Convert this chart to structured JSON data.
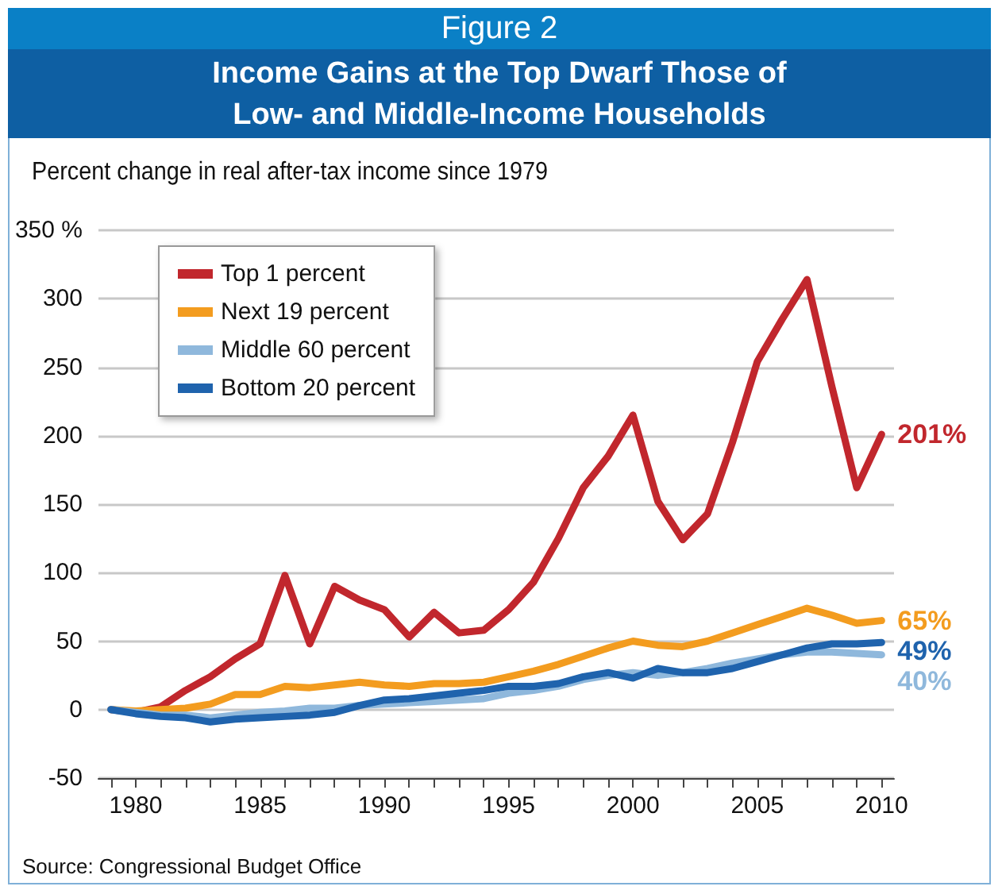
{
  "chart_data": {
    "type": "line",
    "title": "Income Gains at the Top Dwarf Those of Low- and Middle-Income Households",
    "ylabel": "Percent change in real after-tax income since 1979",
    "annotations": [
      "Figure 2",
      "Source: Congressional Budget Office"
    ],
    "x": [
      1979,
      1980,
      1981,
      1982,
      1983,
      1984,
      1985,
      1986,
      1987,
      1988,
      1989,
      1990,
      1991,
      1992,
      1993,
      1994,
      1995,
      1996,
      1997,
      1998,
      1999,
      2000,
      2001,
      2002,
      2003,
      2004,
      2005,
      2006,
      2007,
      2008,
      2009,
      2010
    ],
    "series": [
      {
        "name": "Top 1 percent",
        "color": "#c1272d",
        "values": [
          0,
          -2,
          2,
          14,
          24,
          37,
          48,
          98,
          48,
          90,
          80,
          73,
          53,
          71,
          56,
          58,
          73,
          93,
          125,
          162,
          185,
          215,
          152,
          124,
          143,
          195,
          254,
          285,
          314,
          236,
          162,
          201
        ],
        "value_labels": [
          null,
          null,
          null,
          null,
          null,
          null,
          null,
          null,
          null,
          null,
          null,
          null,
          null,
          null,
          null,
          null,
          null,
          null,
          null,
          null,
          null,
          null,
          null,
          null,
          null,
          null,
          null,
          null,
          null,
          null,
          null,
          "201%"
        ]
      },
      {
        "name": "Next 19 percent",
        "color": "#f39c1f",
        "values": [
          0,
          -1,
          0,
          1,
          4,
          11,
          11,
          17,
          16,
          18,
          20,
          18,
          17,
          19,
          19,
          20,
          24,
          28,
          33,
          39,
          45,
          50,
          47,
          46,
          50,
          56,
          62,
          68,
          74,
          69,
          63,
          65
        ],
        "value_labels": [
          null,
          null,
          null,
          null,
          null,
          null,
          null,
          null,
          null,
          null,
          null,
          null,
          null,
          null,
          null,
          null,
          null,
          null,
          null,
          null,
          null,
          null,
          null,
          null,
          null,
          null,
          null,
          null,
          null,
          null,
          null,
          "65%"
        ]
      },
      {
        "name": "Middle 60 percent",
        "color": "#8fb8dc",
        "values": [
          0,
          -2,
          -4,
          -4,
          -6,
          -4,
          -2,
          -1,
          1,
          1,
          3,
          4,
          5,
          6,
          7,
          8,
          12,
          14,
          17,
          22,
          25,
          27,
          25,
          27,
          30,
          34,
          37,
          40,
          42,
          42,
          41,
          40
        ],
        "value_labels": [
          null,
          null,
          null,
          null,
          null,
          null,
          null,
          null,
          null,
          null,
          null,
          null,
          null,
          null,
          null,
          null,
          null,
          null,
          null,
          null,
          null,
          null,
          null,
          null,
          null,
          null,
          null,
          null,
          null,
          null,
          null,
          "40%"
        ]
      },
      {
        "name": "Bottom 20 percent",
        "color": "#1f63ad",
        "values": [
          0,
          -3,
          -5,
          -6,
          -9,
          -7,
          -6,
          -5,
          -4,
          -2,
          3,
          7,
          8,
          10,
          12,
          14,
          17,
          17,
          19,
          24,
          27,
          23,
          30,
          27,
          27,
          30,
          35,
          40,
          45,
          48,
          48,
          49
        ],
        "value_labels": [
          null,
          null,
          null,
          null,
          null,
          null,
          null,
          null,
          null,
          null,
          null,
          null,
          null,
          null,
          null,
          null,
          null,
          null,
          null,
          null,
          null,
          null,
          null,
          null,
          null,
          null,
          null,
          null,
          null,
          null,
          null,
          "49%"
        ]
      }
    ],
    "xlim": [
      1978.5,
      2010.5
    ],
    "xticks": [
      {
        "value": 1979,
        "label": null
      },
      1980,
      {
        "value": 1981,
        "label": null
      },
      {
        "value": 1982,
        "label": null
      },
      {
        "value": 1983,
        "label": null
      },
      {
        "value": 1984,
        "label": null
      },
      1985,
      {
        "value": 1986,
        "label": null
      },
      {
        "value": 1987,
        "label": null
      },
      {
        "value": 1988,
        "label": null
      },
      {
        "value": 1989,
        "label": null
      },
      1990,
      {
        "value": 1991,
        "label": null
      },
      {
        "value": 1992,
        "label": null
      },
      {
        "value": 1993,
        "label": null
      },
      {
        "value": 1994,
        "label": null
      },
      1995,
      {
        "value": 1996,
        "label": null
      },
      {
        "value": 1997,
        "label": null
      },
      {
        "value": 1998,
        "label": null
      },
      {
        "value": 1999,
        "label": null
      },
      2000,
      {
        "value": 2001,
        "label": null
      },
      {
        "value": 2002,
        "label": null
      },
      {
        "value": 2003,
        "label": null
      },
      {
        "value": 2004,
        "label": null
      },
      2005,
      {
        "value": 2006,
        "label": null
      },
      {
        "value": 2007,
        "label": null
      },
      {
        "value": 2008,
        "label": null
      },
      {
        "value": 2009,
        "label": null
      },
      2010
    ],
    "ylim": [
      -50,
      350
    ],
    "yticks": [
      -50,
      0,
      50,
      100,
      150,
      200,
      250,
      {
        "value": 350,
        "label": "350 %"
      },
      300
    ],
    "grid": "y",
    "legend": "top left",
    "line_style": "solid"
  }
}
